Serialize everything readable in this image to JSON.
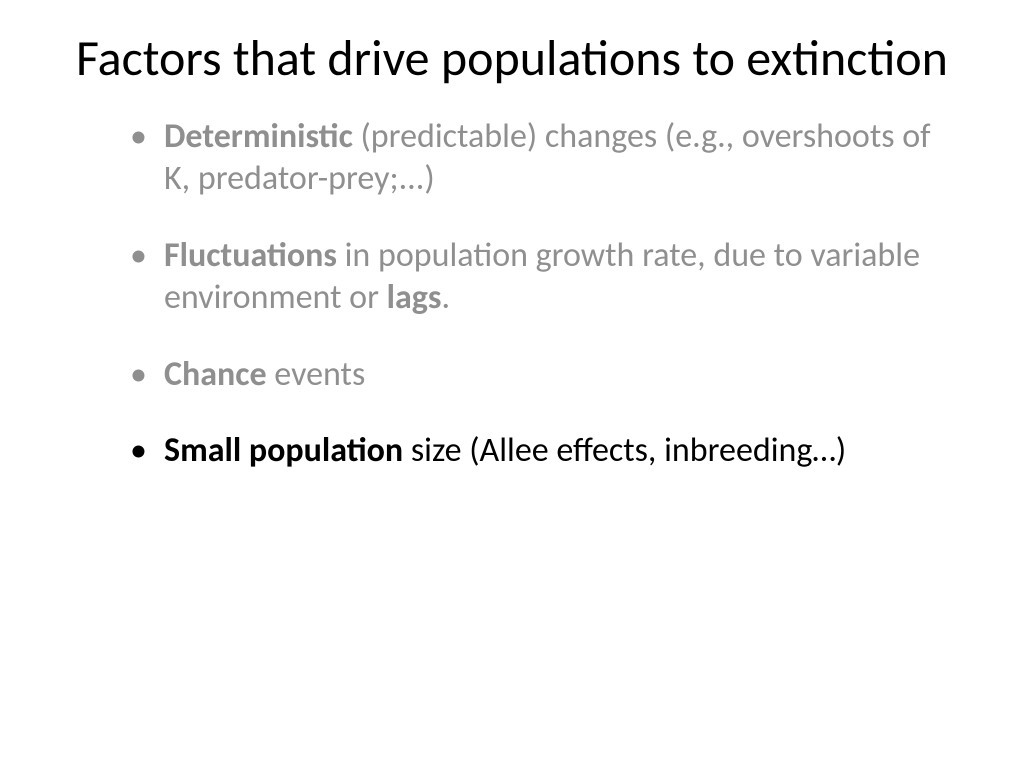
{
  "slide": {
    "title": "Factors that drive populations to extinction",
    "title_fontsize": 50,
    "title_color": "#000000",
    "background_color": "#ffffff",
    "font_family": "Calibri",
    "bullets": [
      {
        "segments": [
          {
            "text": "Deterministic",
            "bold": true
          },
          {
            "text": " (predictable) changes (e.g., overshoots of K, predator-prey;...)",
            "bold": false
          }
        ],
        "color": "#8f8f8f",
        "dimmed": true
      },
      {
        "segments": [
          {
            "text": "Fluctuations",
            "bold": true
          },
          {
            "text": " in population growth rate, due to variable environment or ",
            "bold": false
          },
          {
            "text": "lags",
            "bold": true
          },
          {
            "text": ".",
            "bold": false
          }
        ],
        "color": "#8f8f8f",
        "dimmed": true
      },
      {
        "segments": [
          {
            "text": "Chance",
            "bold": true
          },
          {
            "text": " events",
            "bold": false
          }
        ],
        "color": "#8f8f8f",
        "dimmed": true
      },
      {
        "segments": [
          {
            "text": "Small population",
            "bold": true
          },
          {
            "text": " size (Allee effects, inbreeding…)",
            "bold": false
          }
        ],
        "color": "#000000",
        "dimmed": false
      }
    ],
    "bullet_fontsize": 34,
    "bullet_spacing": 34,
    "bullet_indent": 70,
    "dimmed_color": "#8f8f8f",
    "active_color": "#000000"
  }
}
